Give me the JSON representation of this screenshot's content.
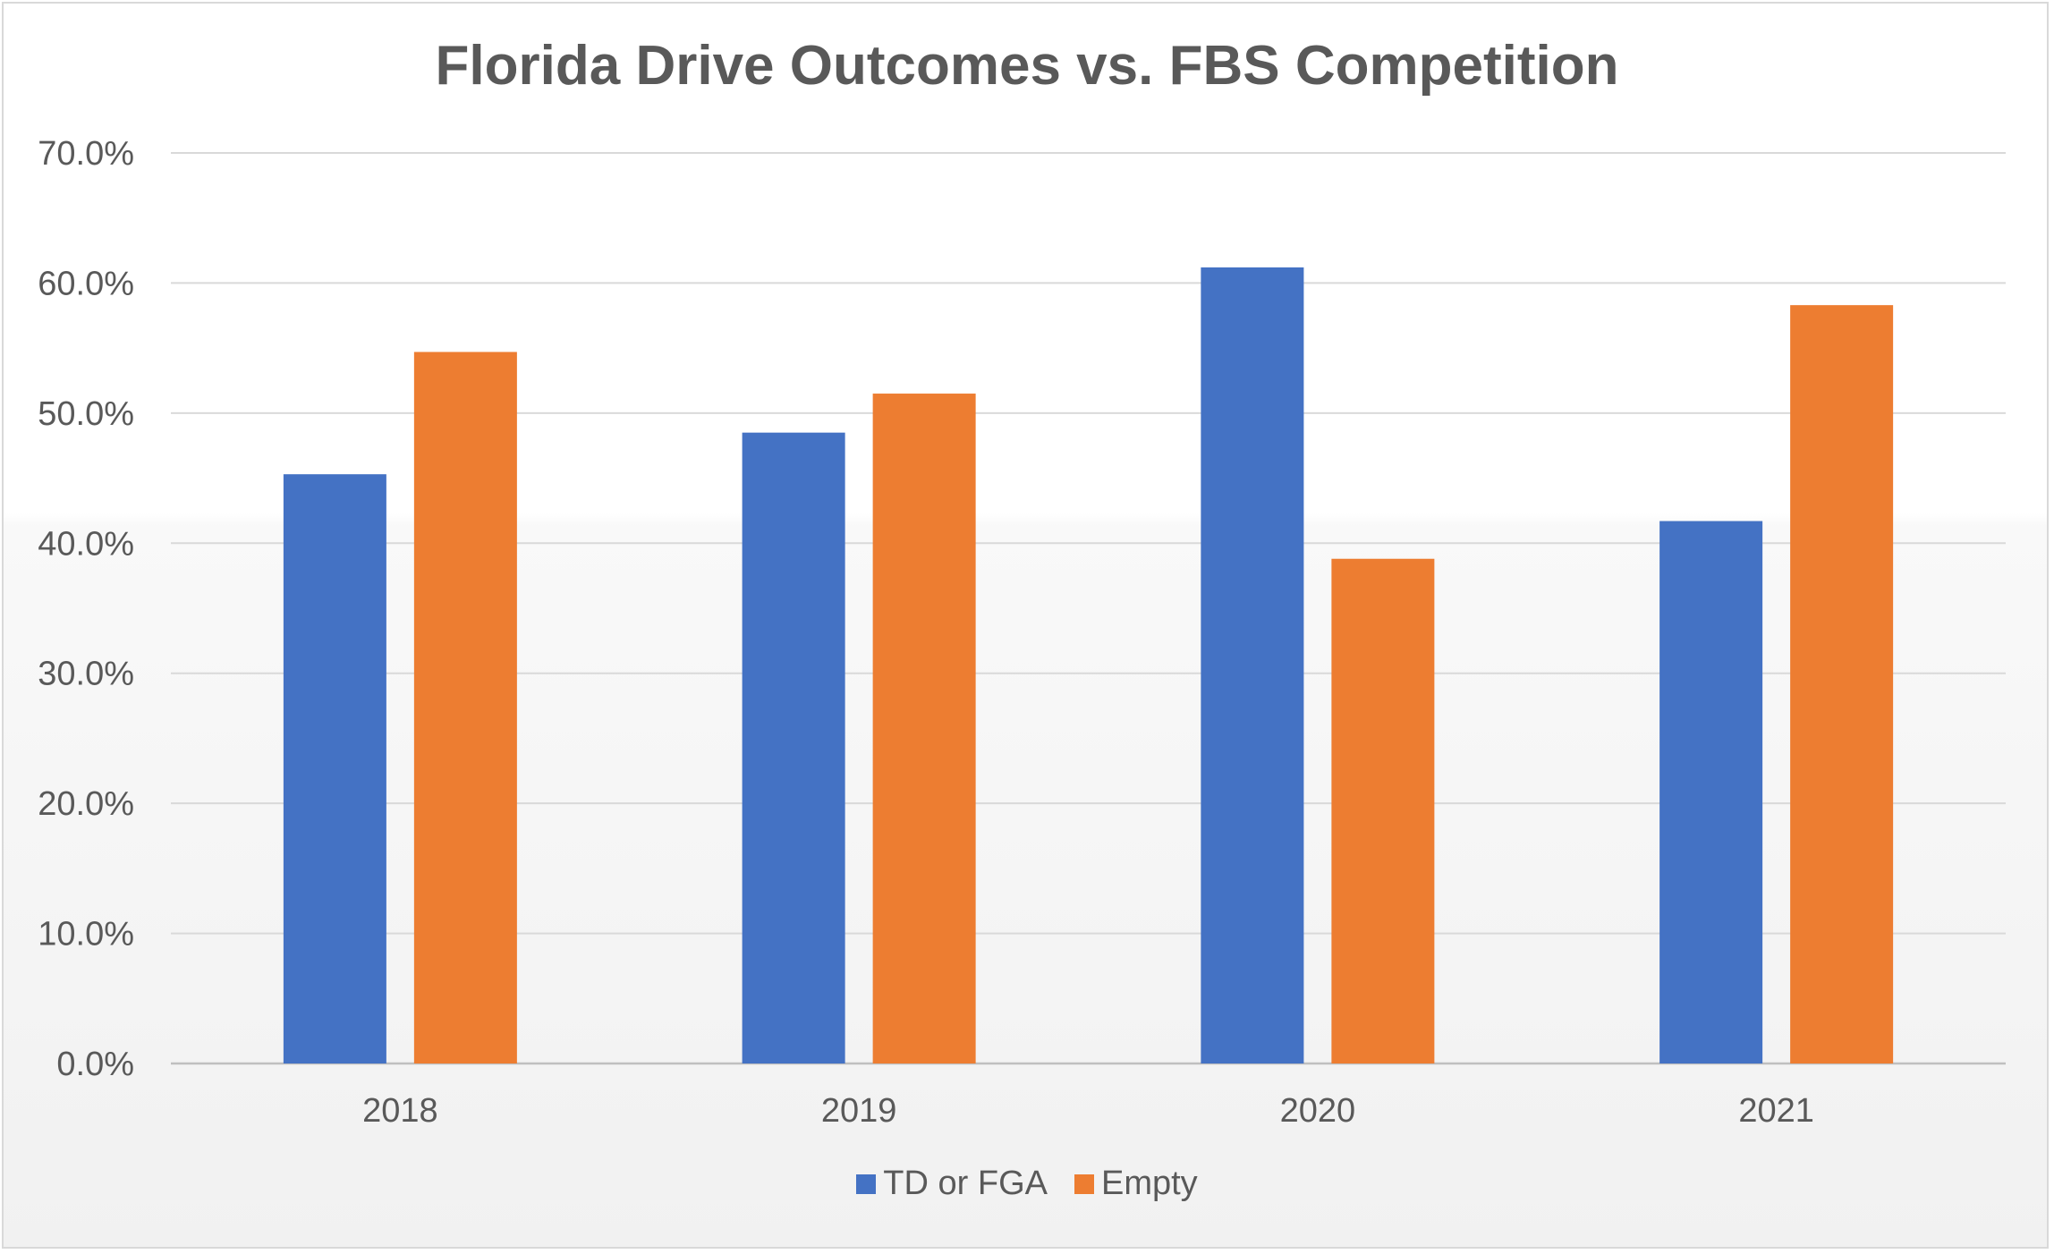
{
  "chart_data": {
    "type": "bar",
    "title": "Florida Drive Outcomes vs. FBS Competition",
    "categories": [
      "2018",
      "2019",
      "2020",
      "2021"
    ],
    "series": [
      {
        "name": "TD or FGA",
        "values": [
          45.3,
          48.5,
          61.2,
          41.7
        ],
        "color": "#4472C4"
      },
      {
        "name": "Empty",
        "values": [
          54.7,
          51.5,
          38.8,
          58.3
        ],
        "color": "#ED7D31"
      }
    ],
    "ylim": [
      0,
      70
    ],
    "yticks": [
      "0.0%",
      "10.0%",
      "20.0%",
      "30.0%",
      "40.0%",
      "50.0%",
      "60.0%",
      "70.0%"
    ],
    "grid": true,
    "legend_position": "bottom"
  }
}
